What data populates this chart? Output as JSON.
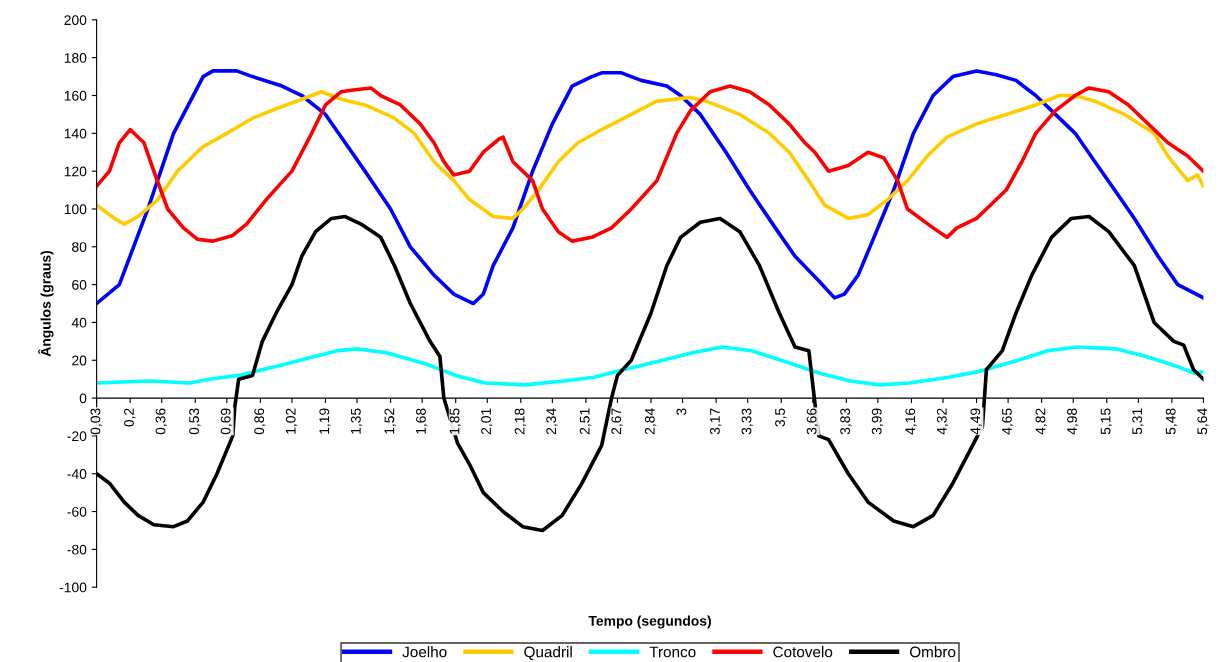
{
  "chart_data": {
    "type": "line",
    "xlabel": "Tempo (segundos)",
    "ylabel": "Ângulos (graus)",
    "xlim": [
      0.03,
      5.64
    ],
    "ylim": [
      -100,
      200
    ],
    "yticks": [
      -100,
      -80,
      -60,
      -40,
      -20,
      0,
      20,
      40,
      60,
      80,
      100,
      120,
      140,
      160,
      180,
      200
    ],
    "xticks": [
      {
        "value": 0.03,
        "label": "0,03"
      },
      {
        "value": 0.2,
        "label": "0,2"
      },
      {
        "value": 0.36,
        "label": "0,36"
      },
      {
        "value": 0.53,
        "label": "0,53"
      },
      {
        "value": 0.69,
        "label": "0,69"
      },
      {
        "value": 0.86,
        "label": "0,86"
      },
      {
        "value": 1.02,
        "label": "1,02"
      },
      {
        "value": 1.19,
        "label": "1,19"
      },
      {
        "value": 1.35,
        "label": "1,35"
      },
      {
        "value": 1.52,
        "label": "1,52"
      },
      {
        "value": 1.68,
        "label": "1,68"
      },
      {
        "value": 1.85,
        "label": "1,85"
      },
      {
        "value": 2.01,
        "label": "2,01"
      },
      {
        "value": 2.18,
        "label": "2,18"
      },
      {
        "value": 2.34,
        "label": "2,34"
      },
      {
        "value": 2.51,
        "label": "2,51"
      },
      {
        "value": 2.67,
        "label": "2,67"
      },
      {
        "value": 2.84,
        "label": "2,84"
      },
      {
        "value": 3,
        "label": "3"
      },
      {
        "value": 3.17,
        "label": "3,17"
      },
      {
        "value": 3.33,
        "label": "3,33"
      },
      {
        "value": 3.5,
        "label": "3,5"
      },
      {
        "value": 3.66,
        "label": "3,66"
      },
      {
        "value": 3.83,
        "label": "3,83"
      },
      {
        "value": 3.99,
        "label": "3,99"
      },
      {
        "value": 4.16,
        "label": "4,16"
      },
      {
        "value": 4.32,
        "label": "4,32"
      },
      {
        "value": 4.49,
        "label": "4,49"
      },
      {
        "value": 4.65,
        "label": "4,65"
      },
      {
        "value": 4.82,
        "label": "4,82"
      },
      {
        "value": 4.98,
        "label": "4,98"
      },
      {
        "value": 5.15,
        "label": "5,15"
      },
      {
        "value": 5.31,
        "label": "5,31"
      },
      {
        "value": 5.48,
        "label": "5,48"
      },
      {
        "value": 5.64,
        "label": "5,64"
      }
    ],
    "grid": false,
    "legend": "bottom",
    "marker": "none",
    "line_style": "solid",
    "series": [
      {
        "name": "Joelho",
        "color": "#0000ff",
        "x": [
          0.03,
          0.145,
          0.29,
          0.42,
          0.57,
          0.62,
          0.74,
          0.82,
          0.97,
          1.07,
          1.19,
          1.29,
          1.39,
          1.52,
          1.62,
          1.74,
          1.84,
          1.94,
          1.99,
          2.04,
          2.14,
          2.24,
          2.34,
          2.44,
          2.54,
          2.59,
          2.69,
          2.79,
          2.92,
          2.99,
          3.09,
          3.22,
          3.34,
          3.47,
          3.57,
          3.69,
          3.77,
          3.82,
          3.89,
          3.97,
          4.07,
          4.17,
          4.27,
          4.37,
          4.49,
          4.59,
          4.69,
          4.79,
          4.89,
          4.99,
          5.09,
          5.19,
          5.29,
          5.41,
          5.51,
          5.64
        ],
        "values": [
          50,
          60,
          100,
          140,
          170,
          173,
          173,
          170,
          165,
          160,
          150,
          135,
          120,
          100,
          80,
          65,
          55,
          50,
          55,
          70,
          90,
          120,
          145,
          165,
          170,
          172,
          172,
          168,
          165,
          160,
          150,
          130,
          110,
          90,
          75,
          62,
          53,
          55,
          65,
          85,
          110,
          140,
          160,
          170,
          173,
          171,
          168,
          160,
          150,
          140,
          125,
          110,
          95,
          75,
          60,
          53
        ]
      },
      {
        "name": "Quadril",
        "color": "#ffcc00",
        "x": [
          0.03,
          0.12,
          0.17,
          0.24,
          0.34,
          0.44,
          0.57,
          0.69,
          0.82,
          0.94,
          1.07,
          1.17,
          1.27,
          1.39,
          1.54,
          1.64,
          1.74,
          1.84,
          1.92,
          2.04,
          2.14,
          2.19,
          2.27,
          2.37,
          2.47,
          2.59,
          2.74,
          2.87,
          3.04,
          3.12,
          3.29,
          3.44,
          3.54,
          3.64,
          3.72,
          3.84,
          3.94,
          4.04,
          4.14,
          4.24,
          4.34,
          4.49,
          4.64,
          4.79,
          4.91,
          4.99,
          5.09,
          5.24,
          5.39,
          5.46,
          5.56,
          5.61,
          5.64
        ],
        "values": [
          102,
          95,
          92,
          96,
          105,
          120,
          133,
          140,
          148,
          153,
          158,
          162,
          158,
          155,
          148,
          140,
          125,
          115,
          105,
          96,
          95,
          100,
          110,
          125,
          135,
          142,
          150,
          157,
          159,
          157,
          150,
          140,
          130,
          115,
          102,
          95,
          97,
          105,
          115,
          128,
          138,
          145,
          150,
          155,
          160,
          160,
          157,
          150,
          140,
          128,
          115,
          118,
          112
        ]
      },
      {
        "name": "Tronco",
        "color": "#00ffff",
        "x": [
          0.03,
          0.3,
          0.5,
          0.6,
          0.75,
          0.95,
          1.1,
          1.25,
          1.35,
          1.5,
          1.7,
          1.85,
          2.0,
          2.2,
          2.4,
          2.55,
          2.7,
          2.9,
          3.05,
          3.2,
          3.35,
          3.5,
          3.7,
          3.85,
          4.0,
          4.15,
          4.35,
          4.5,
          4.7,
          4.85,
          5.0,
          5.2,
          5.35,
          5.5,
          5.6,
          5.64
        ],
        "values": [
          8,
          9,
          8,
          10,
          12,
          17,
          21,
          25,
          26,
          24,
          18,
          12,
          8,
          7,
          9,
          11,
          15,
          20,
          24,
          27,
          25,
          20,
          13,
          9,
          7,
          8,
          11,
          14,
          20,
          25,
          27,
          26,
          22,
          17,
          13,
          14
        ]
      },
      {
        "name": "Cotovelo",
        "color": "#ff0000",
        "x": [
          0.03,
          0.095,
          0.145,
          0.2,
          0.27,
          0.32,
          0.39,
          0.47,
          0.54,
          0.62,
          0.72,
          0.79,
          0.89,
          1.02,
          1.12,
          1.19,
          1.27,
          1.34,
          1.42,
          1.47,
          1.57,
          1.67,
          1.74,
          1.79,
          1.84,
          1.92,
          1.99,
          2.07,
          2.09,
          2.14,
          2.24,
          2.29,
          2.37,
          2.44,
          2.54,
          2.64,
          2.74,
          2.87,
          2.97,
          3.04,
          3.14,
          3.24,
          3.34,
          3.44,
          3.54,
          3.62,
          3.67,
          3.74,
          3.84,
          3.94,
          4.02,
          4.09,
          4.14,
          4.27,
          4.34,
          4.39,
          4.49,
          4.54,
          4.64,
          4.72,
          4.79,
          4.89,
          4.99,
          5.06,
          5.16,
          5.26,
          5.36,
          5.46,
          5.56,
          5.64
        ],
        "values": [
          112,
          120,
          135,
          142,
          135,
          120,
          100,
          90,
          84,
          83,
          86,
          92,
          105,
          120,
          140,
          155,
          162,
          163,
          164,
          160,
          155,
          145,
          135,
          125,
          118,
          120,
          130,
          137,
          138,
          125,
          115,
          100,
          88,
          83,
          85,
          90,
          100,
          115,
          140,
          152,
          162,
          165,
          162,
          155,
          145,
          135,
          130,
          120,
          123,
          130,
          127,
          115,
          100,
          90,
          85,
          90,
          95,
          100,
          110,
          125,
          140,
          152,
          160,
          164,
          162,
          155,
          145,
          135,
          128,
          120
        ]
      },
      {
        "name": "Ombro",
        "color": "#000000",
        "x": [
          0.03,
          0.095,
          0.17,
          0.24,
          0.32,
          0.42,
          0.49,
          0.57,
          0.64,
          0.72,
          0.73,
          0.75,
          0.82,
          0.87,
          0.94,
          1.02,
          1.07,
          1.14,
          1.22,
          1.29,
          1.37,
          1.47,
          1.54,
          1.62,
          1.72,
          1.77,
          1.79,
          1.86,
          1.92,
          1.99,
          2.09,
          2.19,
          2.29,
          2.39,
          2.49,
          2.59,
          2.64,
          2.67,
          2.74,
          2.84,
          2.92,
          2.99,
          3.09,
          3.19,
          3.29,
          3.39,
          3.49,
          3.57,
          3.64,
          3.69,
          3.74,
          3.84,
          3.94,
          4.07,
          4.17,
          4.27,
          4.37,
          4.47,
          4.52,
          4.54,
          4.62,
          4.69,
          4.77,
          4.87,
          4.97,
          5.06,
          5.16,
          5.29,
          5.39,
          5.49,
          5.54,
          5.59,
          5.64
        ],
        "values": [
          -40,
          -45,
          -55,
          -62,
          -67,
          -68,
          -65,
          -55,
          -40,
          -20,
          -5,
          10,
          12,
          30,
          45,
          60,
          75,
          88,
          95,
          96,
          92,
          85,
          70,
          50,
          30,
          22,
          0,
          -24,
          -35,
          -50,
          -60,
          -68,
          -70,
          -62,
          -45,
          -25,
          0,
          12,
          20,
          45,
          70,
          85,
          93,
          95,
          88,
          70,
          45,
          27,
          25,
          -20,
          -22,
          -40,
          -55,
          -65,
          -68,
          -62,
          -45,
          -25,
          -15,
          15,
          25,
          45,
          65,
          85,
          95,
          96,
          88,
          70,
          40,
          30,
          28,
          15,
          10
        ]
      }
    ]
  }
}
